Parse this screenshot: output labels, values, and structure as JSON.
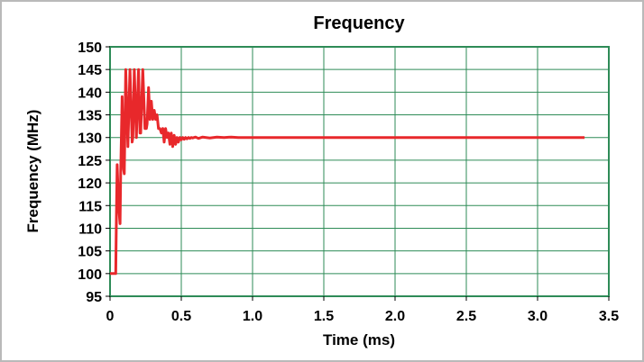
{
  "chart_data": {
    "type": "line",
    "title": "Frequency",
    "xlabel": "Time (ms)",
    "ylabel": "Frequency (MHz)",
    "xlim": [
      0,
      3.5
    ],
    "ylim": [
      95,
      150
    ],
    "x_ticks": [
      "0",
      "0.5",
      "1.0",
      "1.5",
      "2.0",
      "2.5",
      "3.0",
      "3.5"
    ],
    "y_ticks": [
      "95",
      "100",
      "105",
      "110",
      "115",
      "120",
      "125",
      "130",
      "135",
      "140",
      "145",
      "150"
    ],
    "grid": true,
    "legend": "none",
    "colors": {
      "grid": "#2e8b57",
      "line": "#e8282b",
      "frame": "#b9b9b9"
    },
    "series": [
      {
        "x": [
          0,
          0.04,
          0.045,
          0.05,
          0.06,
          0.07,
          0.075,
          0.085,
          0.095,
          0.1,
          0.11,
          0.125,
          0.14,
          0.155,
          0.16,
          0.17,
          0.185,
          0.2,
          0.21,
          0.215,
          0.23,
          0.245,
          0.255,
          0.26,
          0.27,
          0.28,
          0.29,
          0.3,
          0.31,
          0.32,
          0.33,
          0.34,
          0.35,
          0.36,
          0.37,
          0.38,
          0.39,
          0.4,
          0.41,
          0.42,
          0.43,
          0.44,
          0.45,
          0.46,
          0.47,
          0.48,
          0.49,
          0.5,
          0.51,
          0.52,
          0.53,
          0.54,
          0.55,
          0.56,
          0.57,
          0.58,
          0.6,
          0.62,
          0.65,
          0.7,
          0.75,
          0.8,
          0.85,
          0.9,
          0.95,
          1.0,
          1.2,
          1.5,
          2.0,
          2.5,
          3.0,
          3.33
        ],
        "y": [
          100,
          100,
          113,
          124,
          115,
          111,
          122,
          139,
          123,
          122,
          145,
          128,
          145,
          129,
          130,
          145,
          130,
          145,
          131,
          131,
          145,
          132,
          132,
          133,
          141,
          134,
          138,
          134,
          136,
          134,
          135,
          132,
          132,
          131,
          132,
          129,
          132,
          130,
          131,
          128.5,
          131,
          128,
          130.5,
          128.5,
          130,
          129,
          130,
          129.5,
          130,
          129.6,
          130,
          129.7,
          130,
          129.8,
          130,
          129.9,
          130.1,
          129.8,
          130.1,
          129.9,
          130.1,
          130,
          130.1,
          130,
          130,
          130,
          130,
          130,
          130,
          130,
          130,
          130
        ]
      }
    ]
  }
}
